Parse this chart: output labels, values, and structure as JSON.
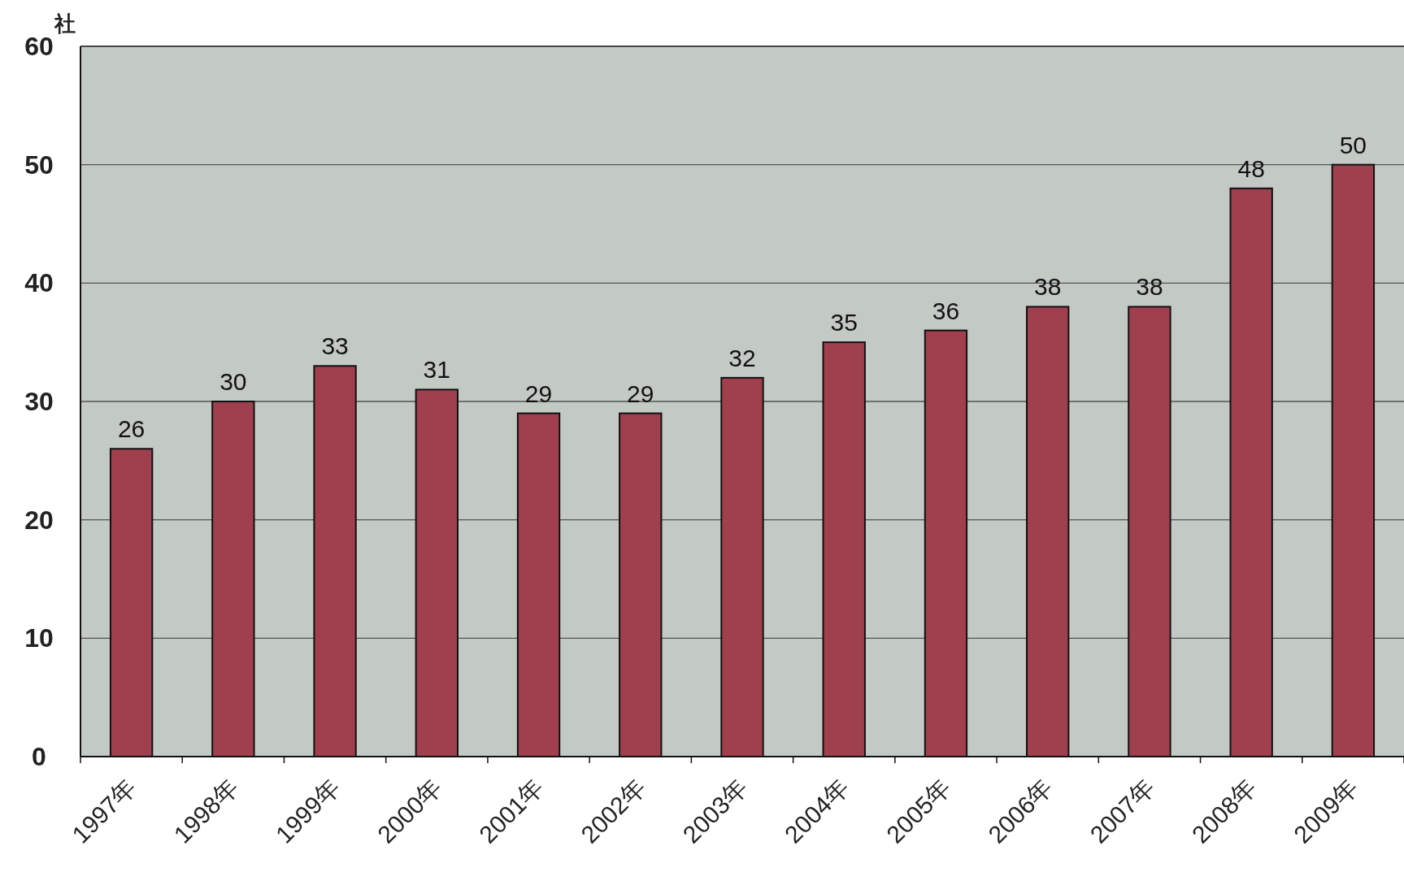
{
  "chart_data": {
    "type": "bar",
    "ylabel": "社",
    "categories": [
      "1997年",
      "1998年",
      "1999年",
      "2000年",
      "2001年",
      "2002年",
      "2003年",
      "2004年",
      "2005年",
      "2006年",
      "2007年",
      "2008年",
      "2009年"
    ],
    "values": [
      26,
      30,
      33,
      31,
      29,
      29,
      32,
      35,
      36,
      38,
      38,
      48,
      50
    ],
    "color": "#a0404f",
    "ylim": [
      0,
      60
    ],
    "yticks": [
      0,
      10,
      20,
      30,
      40,
      50,
      60
    ],
    "grid": "y",
    "data_labels": true
  }
}
